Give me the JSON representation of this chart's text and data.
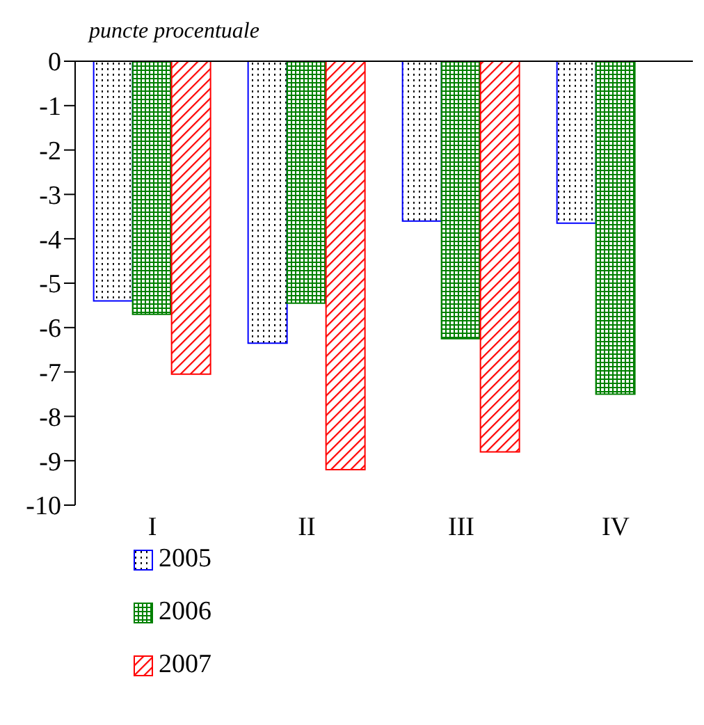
{
  "chart_data": {
    "type": "bar",
    "ylabel": "puncte procentuale",
    "categories": [
      "I",
      "II",
      "III",
      "IV"
    ],
    "series": [
      {
        "name": "2005",
        "color": "#0000ff",
        "values": [
          -5.4,
          -6.35,
          -3.6,
          -3.65
        ]
      },
      {
        "name": "2006",
        "color": "#008000",
        "values": [
          -5.7,
          -5.45,
          -6.25,
          -7.5
        ]
      },
      {
        "name": "2007",
        "color": "#ff0000",
        "values": [
          -7.05,
          -9.2,
          -8.8,
          null
        ]
      }
    ],
    "ylim": [
      -10,
      0
    ],
    "yticks": [
      -10,
      -9,
      -8,
      -7,
      -6,
      -5,
      -4,
      -3,
      -2,
      -1,
      0
    ],
    "grid": false,
    "legend": "bottom left"
  }
}
